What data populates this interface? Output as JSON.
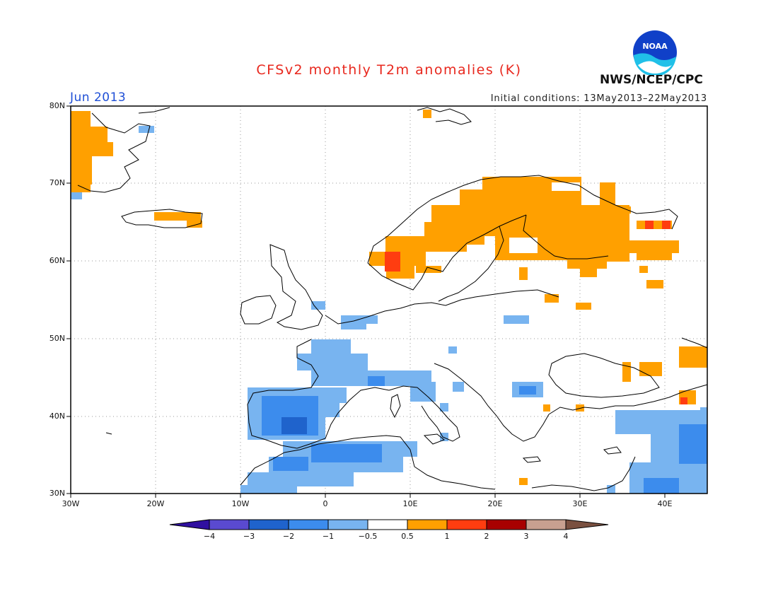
{
  "header": {
    "title": "CFSv2 monthly T2m anomalies (K)",
    "month": "Jun 2013",
    "initial_conditions": "Initial conditions: 13May2013–22May2013",
    "agency": "NWS/NCEP/CPC",
    "logo_text": "NOAA"
  },
  "map": {
    "lon_range": [
      -30,
      45
    ],
    "lat_range": [
      30,
      80
    ],
    "lat_labels": [
      "80N",
      "70N",
      "60N",
      "50N",
      "40N",
      "30N"
    ],
    "lon_labels": [
      "30W",
      "20W",
      "10W",
      "0",
      "10E",
      "20E",
      "30E",
      "40E"
    ],
    "colors": {
      "orange": "#ffa000",
      "red": "#ff3d10",
      "darkred": "#c40000",
      "lightblue": "#78b4f0",
      "blue": "#3c8ced",
      "darkblue": "#1f63cc"
    }
  },
  "colorbar": {
    "labels": [
      "−4",
      "−3",
      "−2",
      "−1",
      "−0.5",
      "0.5",
      "1",
      "2",
      "3",
      "4"
    ],
    "colors": [
      "#3010a0",
      "#5a4ad0",
      "#1f63cc",
      "#3c8ced",
      "#78b4f0",
      "#ffffff",
      "#ffa000",
      "#ff3d10",
      "#a80000",
      "#c8a090",
      "#7a5040"
    ]
  }
}
